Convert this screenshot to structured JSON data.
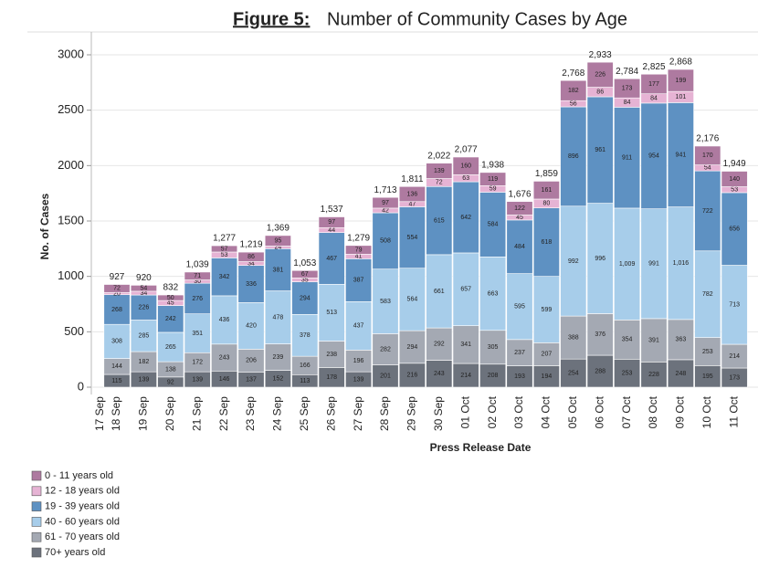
{
  "chart_data": {
    "type": "stacked-bar",
    "title_label": "Figure 5:",
    "title": "Number of Community Cases by Age",
    "x_label": "Press Release Date",
    "y_label": "No. of Cases",
    "categories": [
      "17 Sep",
      "18 Sep",
      "19 Sep",
      "20 Sep",
      "21 Sep",
      "22 Sep",
      "23 Sep",
      "24 Sep",
      "25 Sep",
      "26 Sep",
      "27 Sep",
      "28 Sep",
      "29 Sep",
      "30 Sep",
      "01 Oct",
      "02 Oct",
      "03 Oct",
      "04 Oct",
      "05 Oct",
      "06 Oct",
      "07 Oct",
      "08 Oct",
      "09 Oct",
      "10 Oct",
      "11 Oct"
    ],
    "series": [
      {
        "name": "0 - 11 years old",
        "color": "#ae7aa0",
        "values": [
          null,
          72,
          54,
          50,
          71,
          57,
          86,
          95,
          67,
          97,
          79,
          97,
          136,
          139,
          160,
          119,
          122,
          161,
          182,
          226,
          173,
          177,
          199,
          170,
          140
        ]
      },
      {
        "name": "12 - 18 years old",
        "color": "#e6b3d4",
        "values": [
          null,
          20,
          34,
          45,
          30,
          53,
          34,
          24,
          35,
          44,
          41,
          42,
          47,
          72,
          63,
          59,
          45,
          80,
          56,
          86,
          84,
          84,
          101,
          54,
          53
        ]
      },
      {
        "name": "19 - 39 years old",
        "color": "#5e91c2",
        "values": [
          null,
          268,
          226,
          242,
          276,
          342,
          336,
          381,
          294,
          467,
          387,
          508,
          554,
          615,
          642,
          584,
          484,
          618,
          896,
          961,
          911,
          954,
          941,
          722,
          656
        ]
      },
      {
        "name": "40 - 60 years old",
        "color": "#a7cdea",
        "values": [
          null,
          308,
          285,
          265,
          351,
          436,
          420,
          478,
          378,
          513,
          437,
          583,
          564,
          661,
          657,
          663,
          595,
          599,
          992,
          996,
          1009,
          991,
          1016,
          782,
          713
        ],
        "value_labels": [
          null,
          "308",
          "285",
          "265",
          "351",
          "436",
          "420",
          "478",
          "378",
          "513",
          "437",
          "583",
          "564",
          "661",
          "657",
          "663",
          "595",
          "599",
          "992",
          "996",
          "1,009",
          "991",
          "1,016",
          "782",
          "713"
        ]
      },
      {
        "name": "61 - 70 years old",
        "color": "#a4a9b3",
        "values": [
          null,
          144,
          182,
          138,
          172,
          243,
          206,
          239,
          166,
          238,
          196,
          282,
          294,
          292,
          341,
          305,
          237,
          207,
          388,
          376,
          354,
          391,
          363,
          253,
          214
        ]
      },
      {
        "name": "70+ years old",
        "color": "#6c727c",
        "values": [
          null,
          115,
          139,
          92,
          139,
          146,
          137,
          152,
          113,
          178,
          139,
          201,
          216,
          243,
          214,
          208,
          193,
          194,
          254,
          288,
          253,
          228,
          248,
          195,
          173
        ]
      }
    ],
    "totals": [
      null,
      927,
      920,
      832,
      1039,
      1277,
      1219,
      1369,
      1053,
      1537,
      1279,
      1713,
      1811,
      2022,
      2077,
      1938,
      1676,
      1859,
      2768,
      2933,
      2784,
      2825,
      2868,
      2176,
      1949
    ],
    "total_labels": [
      null,
      "927",
      "920",
      "832",
      "1,039",
      "1,277",
      "1,219",
      "1,369",
      "1,053",
      "1,537",
      "1,279",
      "1,713",
      "1,811",
      "2,022",
      "2,077",
      "1,938",
      "1,676",
      "1,859",
      "2,768",
      "2,933",
      "2,784",
      "2,825",
      "2,868",
      "2,176",
      "1,949"
    ],
    "ylim": [
      0,
      3000
    ],
    "yticks": [
      0,
      500,
      1000,
      1500,
      2000,
      2500,
      3000
    ],
    "grid": true
  }
}
